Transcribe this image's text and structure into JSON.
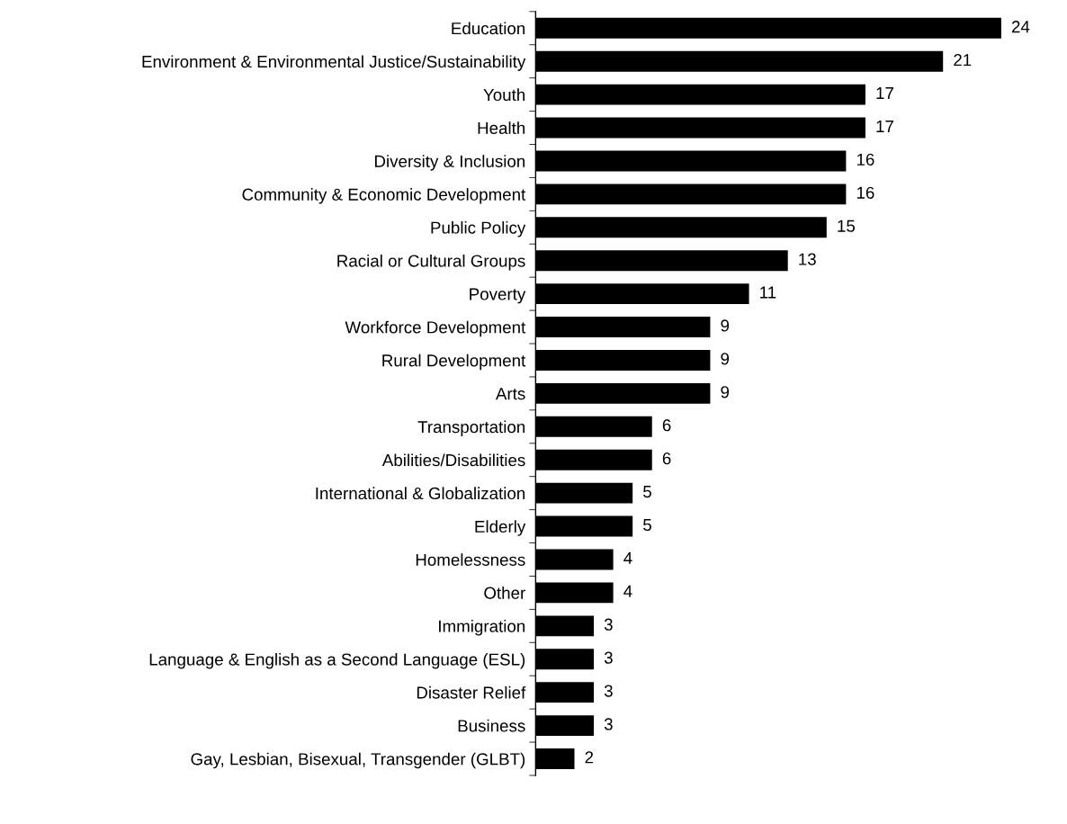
{
  "chart_data": {
    "type": "bar",
    "orientation": "horizontal",
    "categories": [
      "Education",
      "Environment & Environmental Justice/Sustainability",
      "Youth",
      "Health",
      "Diversity & Inclusion",
      "Community & Economic Development",
      "Public Policy",
      "Racial or Cultural Groups",
      "Poverty",
      "Workforce Development",
      "Rural Development",
      "Arts",
      "Transportation",
      "Abilities/Disabilities",
      "International & Globalization",
      "Elderly",
      "Homelessness",
      "Other",
      "Immigration",
      "Language & English as a Second Language (ESL)",
      "Disaster Relief",
      "Business",
      "Gay, Lesbian, Bisexual, Transgender (GLBT)"
    ],
    "values": [
      24,
      21,
      17,
      17,
      16,
      16,
      15,
      13,
      11,
      9,
      9,
      9,
      6,
      6,
      5,
      5,
      4,
      4,
      3,
      3,
      3,
      3,
      2
    ],
    "color": "#000000",
    "data_labels": true,
    "grid": false,
    "legend": false,
    "tick_labels": "y"
  }
}
